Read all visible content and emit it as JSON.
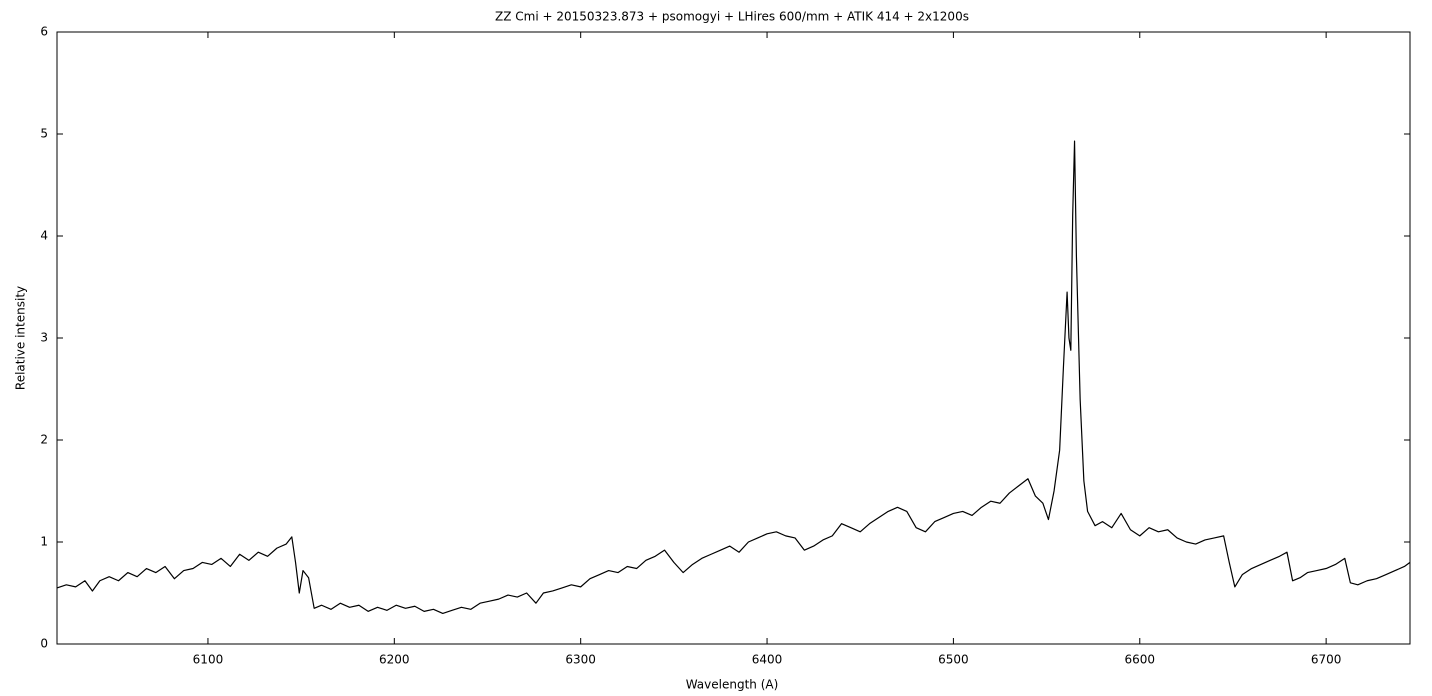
{
  "chart_data": {
    "type": "line",
    "title": "ZZ Cmi + 20150323.873 + psomogyi + LHires 600/mm + ATIK 414 + 2x1200s",
    "x_label": "Wavelength (A)",
    "y_label": "Relative intensity",
    "color": "#000000",
    "xlim": [
      6019,
      6745
    ],
    "ylim": [
      0,
      6
    ],
    "xticks": [
      6100,
      6200,
      6300,
      6400,
      6500,
      6600,
      6700
    ],
    "yticks": [
      0,
      1,
      2,
      3,
      4,
      5,
      6
    ],
    "x": [
      6019,
      6024,
      6029,
      6034,
      6038,
      6042,
      6047,
      6052,
      6057,
      6062,
      6067,
      6072,
      6077,
      6082,
      6087,
      6092,
      6097,
      6102,
      6107,
      6112,
      6117,
      6122,
      6127,
      6132,
      6137,
      6142,
      6145,
      6147,
      6149,
      6151,
      6154,
      6157,
      6161,
      6166,
      6171,
      6176,
      6181,
      6186,
      6191,
      6196,
      6201,
      6206,
      6211,
      6216,
      6221,
      6226,
      6231,
      6236,
      6241,
      6246,
      6251,
      6256,
      6261,
      6266,
      6271,
      6276,
      6280,
      6285,
      6290,
      6295,
      6300,
      6305,
      6310,
      6315,
      6320,
      6325,
      6330,
      6335,
      6340,
      6345,
      6350,
      6355,
      6360,
      6365,
      6370,
      6375,
      6380,
      6385,
      6390,
      6395,
      6400,
      6405,
      6410,
      6415,
      6420,
      6425,
      6430,
      6435,
      6440,
      6445,
      6450,
      6455,
      6460,
      6465,
      6470,
      6475,
      6480,
      6485,
      6490,
      6495,
      6500,
      6505,
      6510,
      6515,
      6520,
      6525,
      6530,
      6535,
      6540,
      6544,
      6548,
      6551,
      6554,
      6557,
      6559,
      6561,
      6562,
      6563,
      6564,
      6565,
      6566,
      6568,
      6570,
      6572,
      6576,
      6580,
      6585,
      6590,
      6595,
      6600,
      6605,
      6610,
      6615,
      6620,
      6625,
      6630,
      6635,
      6640,
      6645,
      6648,
      6651,
      6655,
      6660,
      6665,
      6670,
      6675,
      6679,
      6682,
      6686,
      6690,
      6695,
      6700,
      6705,
      6710,
      6713,
      6717,
      6722,
      6727,
      6732,
      6737,
      6742,
      6745
    ],
    "values": [
      0.55,
      0.58,
      0.56,
      0.62,
      0.52,
      0.62,
      0.66,
      0.62,
      0.7,
      0.66,
      0.74,
      0.7,
      0.76,
      0.64,
      0.72,
      0.74,
      0.8,
      0.78,
      0.84,
      0.76,
      0.88,
      0.82,
      0.9,
      0.86,
      0.94,
      0.98,
      1.05,
      0.8,
      0.5,
      0.72,
      0.65,
      0.35,
      0.38,
      0.34,
      0.4,
      0.36,
      0.38,
      0.32,
      0.36,
      0.33,
      0.38,
      0.35,
      0.37,
      0.32,
      0.34,
      0.3,
      0.33,
      0.36,
      0.34,
      0.4,
      0.42,
      0.44,
      0.48,
      0.46,
      0.5,
      0.4,
      0.5,
      0.52,
      0.55,
      0.58,
      0.56,
      0.64,
      0.68,
      0.72,
      0.7,
      0.76,
      0.74,
      0.82,
      0.86,
      0.92,
      0.8,
      0.7,
      0.78,
      0.84,
      0.88,
      0.92,
      0.96,
      0.9,
      1.0,
      1.04,
      1.08,
      1.1,
      1.06,
      1.04,
      0.92,
      0.96,
      1.02,
      1.06,
      1.18,
      1.14,
      1.1,
      1.18,
      1.24,
      1.3,
      1.34,
      1.3,
      1.14,
      1.1,
      1.2,
      1.24,
      1.28,
      1.3,
      1.26,
      1.34,
      1.4,
      1.38,
      1.48,
      1.55,
      1.62,
      1.45,
      1.38,
      1.22,
      1.5,
      1.9,
      2.7,
      3.45,
      3.0,
      2.88,
      4.2,
      4.93,
      3.8,
      2.4,
      1.6,
      1.3,
      1.16,
      1.2,
      1.14,
      1.28,
      1.12,
      1.06,
      1.14,
      1.1,
      1.12,
      1.04,
      1.0,
      0.98,
      1.02,
      1.04,
      1.06,
      0.8,
      0.56,
      0.68,
      0.74,
      0.78,
      0.82,
      0.86,
      0.9,
      0.62,
      0.65,
      0.7,
      0.72,
      0.74,
      0.78,
      0.84,
      0.6,
      0.58,
      0.62,
      0.64,
      0.68,
      0.72,
      0.76,
      0.8
    ]
  }
}
